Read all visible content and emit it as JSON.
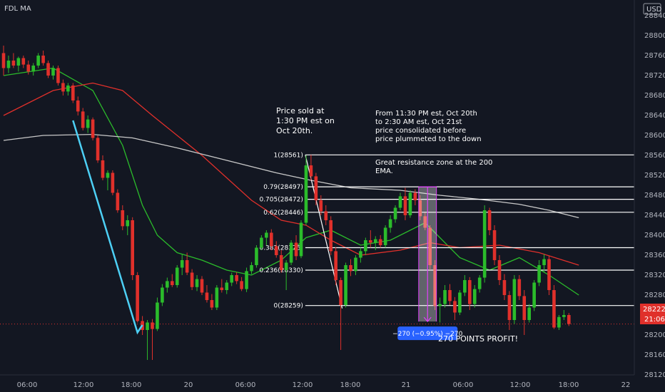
{
  "header": {
    "symbol": "FDL MA",
    "currency": "USD"
  },
  "chart_data": {
    "type": "candlestick",
    "price_ticks": [
      "28840",
      "28800",
      "28760",
      "28720",
      "28680",
      "28640",
      "28600",
      "28560",
      "28520",
      "28480",
      "28440",
      "28400",
      "28360",
      "28320",
      "28280",
      "28240",
      "28200",
      "28160",
      "28120"
    ],
    "price_range": [
      28098,
      28852
    ],
    "time_labels": [
      "06:00",
      "12:00",
      "18:00",
      "20",
      "06:00",
      "12:00",
      "18:00",
      "21",
      "06:00",
      "12:00",
      "18:00",
      "22"
    ],
    "candles": [
      {
        "o": 28765,
        "h": 28780,
        "l": 28720,
        "c": 28735
      },
      {
        "o": 28735,
        "h": 28760,
        "l": 28725,
        "c": 28750
      },
      {
        "o": 28750,
        "h": 28765,
        "l": 28735,
        "c": 28740
      },
      {
        "o": 28740,
        "h": 28758,
        "l": 28728,
        "c": 28755
      },
      {
        "o": 28755,
        "h": 28760,
        "l": 28735,
        "c": 28742
      },
      {
        "o": 28742,
        "h": 28750,
        "l": 28722,
        "c": 28728
      },
      {
        "o": 28728,
        "h": 28745,
        "l": 28720,
        "c": 28740
      },
      {
        "o": 28740,
        "h": 28765,
        "l": 28735,
        "c": 28760
      },
      {
        "o": 28760,
        "h": 28770,
        "l": 28740,
        "c": 28745
      },
      {
        "o": 28745,
        "h": 28750,
        "l": 28715,
        "c": 28720
      },
      {
        "o": 28720,
        "h": 28740,
        "l": 28712,
        "c": 28735
      },
      {
        "o": 28735,
        "h": 28740,
        "l": 28700,
        "c": 28705
      },
      {
        "o": 28705,
        "h": 28712,
        "l": 28680,
        "c": 28688
      },
      {
        "o": 28688,
        "h": 28705,
        "l": 28680,
        "c": 28700
      },
      {
        "o": 28700,
        "h": 28705,
        "l": 28665,
        "c": 28670
      },
      {
        "o": 28670,
        "h": 28678,
        "l": 28640,
        "c": 28648
      },
      {
        "o": 28648,
        "h": 28655,
        "l": 28610,
        "c": 28615
      },
      {
        "o": 28615,
        "h": 28640,
        "l": 28605,
        "c": 28632
      },
      {
        "o": 28632,
        "h": 28636,
        "l": 28590,
        "c": 28595
      },
      {
        "o": 28595,
        "h": 28600,
        "l": 28545,
        "c": 28550
      },
      {
        "o": 28550,
        "h": 28560,
        "l": 28510,
        "c": 28515
      },
      {
        "o": 28515,
        "h": 28530,
        "l": 28490,
        "c": 28525
      },
      {
        "o": 28525,
        "h": 28530,
        "l": 28480,
        "c": 28485
      },
      {
        "o": 28485,
        "h": 28492,
        "l": 28445,
        "c": 28450
      },
      {
        "o": 28450,
        "h": 28460,
        "l": 28410,
        "c": 28418
      },
      {
        "o": 28418,
        "h": 28440,
        "l": 28400,
        "c": 28430
      },
      {
        "o": 28430,
        "h": 28436,
        "l": 28310,
        "c": 28320
      },
      {
        "o": 28320,
        "h": 28326,
        "l": 28225,
        "c": 28228
      },
      {
        "o": 28228,
        "h": 28238,
        "l": 28200,
        "c": 28210
      },
      {
        "o": 28210,
        "h": 28230,
        "l": 28150,
        "c": 28225
      },
      {
        "o": 28225,
        "h": 28232,
        "l": 28150,
        "c": 28212
      },
      {
        "o": 28212,
        "h": 28275,
        "l": 28208,
        "c": 28265
      },
      {
        "o": 28265,
        "h": 28302,
        "l": 28258,
        "c": 28295
      },
      {
        "o": 28295,
        "h": 28315,
        "l": 28285,
        "c": 28308
      },
      {
        "o": 28308,
        "h": 28322,
        "l": 28296,
        "c": 28300
      },
      {
        "o": 28300,
        "h": 28340,
        "l": 28295,
        "c": 28335
      },
      {
        "o": 28335,
        "h": 28362,
        "l": 28320,
        "c": 28350
      },
      {
        "o": 28350,
        "h": 28365,
        "l": 28320,
        "c": 28325
      },
      {
        "o": 28325,
        "h": 28332,
        "l": 28290,
        "c": 28296
      },
      {
        "o": 28296,
        "h": 28320,
        "l": 28288,
        "c": 28312
      },
      {
        "o": 28312,
        "h": 28318,
        "l": 28280,
        "c": 28285
      },
      {
        "o": 28285,
        "h": 28300,
        "l": 28265,
        "c": 28270
      },
      {
        "o": 28270,
        "h": 28282,
        "l": 28250,
        "c": 28255
      },
      {
        "o": 28255,
        "h": 28300,
        "l": 28250,
        "c": 28295
      },
      {
        "o": 28295,
        "h": 28312,
        "l": 28285,
        "c": 28290
      },
      {
        "o": 28290,
        "h": 28310,
        "l": 28282,
        "c": 28305
      },
      {
        "o": 28305,
        "h": 28325,
        "l": 28298,
        "c": 28320
      },
      {
        "o": 28320,
        "h": 28326,
        "l": 28302,
        "c": 28308
      },
      {
        "o": 28308,
        "h": 28316,
        "l": 28288,
        "c": 28292
      },
      {
        "o": 28292,
        "h": 28335,
        "l": 28286,
        "c": 28328
      },
      {
        "o": 28328,
        "h": 28346,
        "l": 28322,
        "c": 28340
      },
      {
        "o": 28340,
        "h": 28380,
        "l": 28335,
        "c": 28375
      },
      {
        "o": 28375,
        "h": 28400,
        "l": 28370,
        "c": 28395
      },
      {
        "o": 28395,
        "h": 28410,
        "l": 28380,
        "c": 28405
      },
      {
        "o": 28405,
        "h": 28412,
        "l": 28370,
        "c": 28378
      },
      {
        "o": 28378,
        "h": 28388,
        "l": 28355,
        "c": 28360
      },
      {
        "o": 28360,
        "h": 28370,
        "l": 28325,
        "c": 28330
      },
      {
        "o": 28330,
        "h": 28350,
        "l": 28290,
        "c": 28345
      },
      {
        "o": 28345,
        "h": 28390,
        "l": 28340,
        "c": 28385
      },
      {
        "o": 28385,
        "h": 28400,
        "l": 28350,
        "c": 28358
      },
      {
        "o": 28358,
        "h": 28430,
        "l": 28354,
        "c": 28425
      },
      {
        "o": 28425,
        "h": 28560,
        "l": 28420,
        "c": 28540
      },
      {
        "o": 28540,
        "h": 28561,
        "l": 28510,
        "c": 28518
      },
      {
        "o": 28518,
        "h": 28525,
        "l": 28460,
        "c": 28470
      },
      {
        "o": 28470,
        "h": 28480,
        "l": 28440,
        "c": 28448
      },
      {
        "o": 28448,
        "h": 28460,
        "l": 28420,
        "c": 28430
      },
      {
        "o": 28430,
        "h": 28438,
        "l": 28360,
        "c": 28368
      },
      {
        "o": 28368,
        "h": 28376,
        "l": 28300,
        "c": 28310
      },
      {
        "o": 28310,
        "h": 28315,
        "l": 28170,
        "c": 28260
      },
      {
        "o": 28260,
        "h": 28345,
        "l": 28255,
        "c": 28340
      },
      {
        "o": 28340,
        "h": 28352,
        "l": 28318,
        "c": 28328
      },
      {
        "o": 28328,
        "h": 28360,
        "l": 28320,
        "c": 28355
      },
      {
        "o": 28355,
        "h": 28375,
        "l": 28345,
        "c": 28368
      },
      {
        "o": 28368,
        "h": 28395,
        "l": 28360,
        "c": 28390
      },
      {
        "o": 28390,
        "h": 28410,
        "l": 28375,
        "c": 28385
      },
      {
        "o": 28385,
        "h": 28398,
        "l": 28370,
        "c": 28392
      },
      {
        "o": 28392,
        "h": 28400,
        "l": 28375,
        "c": 28380
      },
      {
        "o": 28380,
        "h": 28420,
        "l": 28375,
        "c": 28415
      },
      {
        "o": 28415,
        "h": 28440,
        "l": 28405,
        "c": 28432
      },
      {
        "o": 28432,
        "h": 28460,
        "l": 28425,
        "c": 28455
      },
      {
        "o": 28455,
        "h": 28485,
        "l": 28450,
        "c": 28478
      },
      {
        "o": 28478,
        "h": 28495,
        "l": 28430,
        "c": 28440
      },
      {
        "o": 28440,
        "h": 28490,
        "l": 28435,
        "c": 28485
      },
      {
        "o": 28485,
        "h": 28492,
        "l": 28460,
        "c": 28470
      },
      {
        "o": 28470,
        "h": 28480,
        "l": 28430,
        "c": 28438
      },
      {
        "o": 28438,
        "h": 28445,
        "l": 28410,
        "c": 28415
      },
      {
        "o": 28415,
        "h": 28420,
        "l": 28330,
        "c": 28340
      },
      {
        "o": 28340,
        "h": 28350,
        "l": 28250,
        "c": 28258
      },
      {
        "o": 28258,
        "h": 28275,
        "l": 28225,
        "c": 28262
      },
      {
        "o": 28262,
        "h": 28300,
        "l": 28255,
        "c": 28290
      },
      {
        "o": 28290,
        "h": 28302,
        "l": 28260,
        "c": 28268
      },
      {
        "o": 28268,
        "h": 28276,
        "l": 28230,
        "c": 28245
      },
      {
        "o": 28245,
        "h": 28290,
        "l": 28240,
        "c": 28285
      },
      {
        "o": 28285,
        "h": 28320,
        "l": 28278,
        "c": 28310
      },
      {
        "o": 28310,
        "h": 28316,
        "l": 28250,
        "c": 28262
      },
      {
        "o": 28262,
        "h": 28300,
        "l": 28255,
        "c": 28292
      },
      {
        "o": 28292,
        "h": 28320,
        "l": 28285,
        "c": 28315
      },
      {
        "o": 28315,
        "h": 28460,
        "l": 28305,
        "c": 28450
      },
      {
        "o": 28450,
        "h": 28455,
        "l": 28400,
        "c": 28410
      },
      {
        "o": 28410,
        "h": 28420,
        "l": 28340,
        "c": 28350
      },
      {
        "o": 28350,
        "h": 28360,
        "l": 28300,
        "c": 28310
      },
      {
        "o": 28310,
        "h": 28322,
        "l": 28270,
        "c": 28280
      },
      {
        "o": 28280,
        "h": 28288,
        "l": 28210,
        "c": 28230
      },
      {
        "o": 28230,
        "h": 28320,
        "l": 28222,
        "c": 28312
      },
      {
        "o": 28312,
        "h": 28320,
        "l": 28270,
        "c": 28278
      },
      {
        "o": 28278,
        "h": 28290,
        "l": 28200,
        "c": 28230
      },
      {
        "o": 28230,
        "h": 28262,
        "l": 28225,
        "c": 28255
      },
      {
        "o": 28255,
        "h": 28310,
        "l": 28248,
        "c": 28305
      },
      {
        "o": 28305,
        "h": 28350,
        "l": 28298,
        "c": 28340
      },
      {
        "o": 28340,
        "h": 28362,
        "l": 28325,
        "c": 28352
      },
      {
        "o": 28352,
        "h": 28358,
        "l": 28280,
        "c": 28290
      },
      {
        "o": 28290,
        "h": 28300,
        "l": 28212,
        "c": 28215
      },
      {
        "o": 28215,
        "h": 28240,
        "l": 28210,
        "c": 28236
      },
      {
        "o": 28236,
        "h": 28250,
        "l": 28230,
        "c": 28240
      },
      {
        "o": 28240,
        "h": 28244,
        "l": 28218,
        "c": 28222
      }
    ],
    "moving_averages": [
      {
        "color": "#2bbc2b",
        "points": [
          [
            0,
            28720
          ],
          [
            10,
            28735
          ],
          [
            18,
            28690
          ],
          [
            24,
            28580
          ],
          [
            28,
            28460
          ],
          [
            31,
            28400
          ],
          [
            35,
            28365
          ],
          [
            40,
            28350
          ],
          [
            45,
            28330
          ],
          [
            50,
            28320
          ],
          [
            56,
            28350
          ],
          [
            61,
            28395
          ],
          [
            66,
            28410
          ],
          [
            72,
            28380
          ],
          [
            78,
            28390
          ],
          [
            85,
            28425
          ],
          [
            92,
            28355
          ],
          [
            98,
            28330
          ],
          [
            104,
            28355
          ],
          [
            110,
            28320
          ],
          [
            116,
            28280
          ]
        ]
      },
      {
        "color": "#e0302b",
        "points": [
          [
            0,
            28640
          ],
          [
            10,
            28690
          ],
          [
            18,
            28705
          ],
          [
            24,
            28690
          ],
          [
            30,
            28640
          ],
          [
            40,
            28560
          ],
          [
            50,
            28470
          ],
          [
            56,
            28430
          ],
          [
            61,
            28420
          ],
          [
            66,
            28390
          ],
          [
            72,
            28360
          ],
          [
            80,
            28370
          ],
          [
            86,
            28385
          ],
          [
            92,
            28375
          ],
          [
            100,
            28380
          ],
          [
            108,
            28365
          ],
          [
            116,
            28340
          ]
        ]
      },
      {
        "color": "#c8c8c8",
        "points": [
          [
            0,
            28590
          ],
          [
            8,
            28600
          ],
          [
            18,
            28602
          ],
          [
            26,
            28595
          ],
          [
            35,
            28575
          ],
          [
            45,
            28550
          ],
          [
            55,
            28525
          ],
          [
            62,
            28510
          ],
          [
            70,
            28495
          ],
          [
            80,
            28490
          ],
          [
            88,
            28480
          ],
          [
            96,
            28472
          ],
          [
            104,
            28462
          ],
          [
            110,
            28450
          ],
          [
            116,
            28435
          ]
        ]
      }
    ],
    "fib_levels": [
      {
        "label": "1(28561)",
        "price": 28561
      },
      {
        "label": "0.79(28497)",
        "price": 28497
      },
      {
        "label": "0.705(28472)",
        "price": 28472
      },
      {
        "label": "0.62(28446)",
        "price": 28446
      },
      {
        "label": "0.382(28375)",
        "price": 28375
      },
      {
        "label": "0.236(28330)",
        "price": 28330
      },
      {
        "label": "0(28259)",
        "price": 28259
      }
    ],
    "fib_start_index": 62,
    "measure": {
      "start_index": 84,
      "end_index": 87,
      "top": 28497,
      "bottom": 28227,
      "label": "−270 (−0.95%) −270"
    },
    "cyan_trend": {
      "start": [
        14,
        28630
      ],
      "mid": [
        27,
        28205
      ],
      "end": [
        28,
        28220
      ]
    },
    "current_price": {
      "value": "28222",
      "countdown": "21:06",
      "price": 28222
    }
  },
  "annotations": {
    "sold": "Price sold at 1:30 PM est on Oct 20th.",
    "consolidation": "From 11:30 PM est, Oct 20th to 2:30 AM est, Oct 21st price consolidated before price plummeted to the down side.",
    "resistance": "Great resistance zone at the 200 EMA.",
    "profit": "270 POINTS PROFIT!"
  },
  "colors": {
    "up": "#2bbc2b",
    "down": "#e0302b",
    "background": "#131722",
    "measure": "#e040fb",
    "badge": "#2962ff"
  }
}
